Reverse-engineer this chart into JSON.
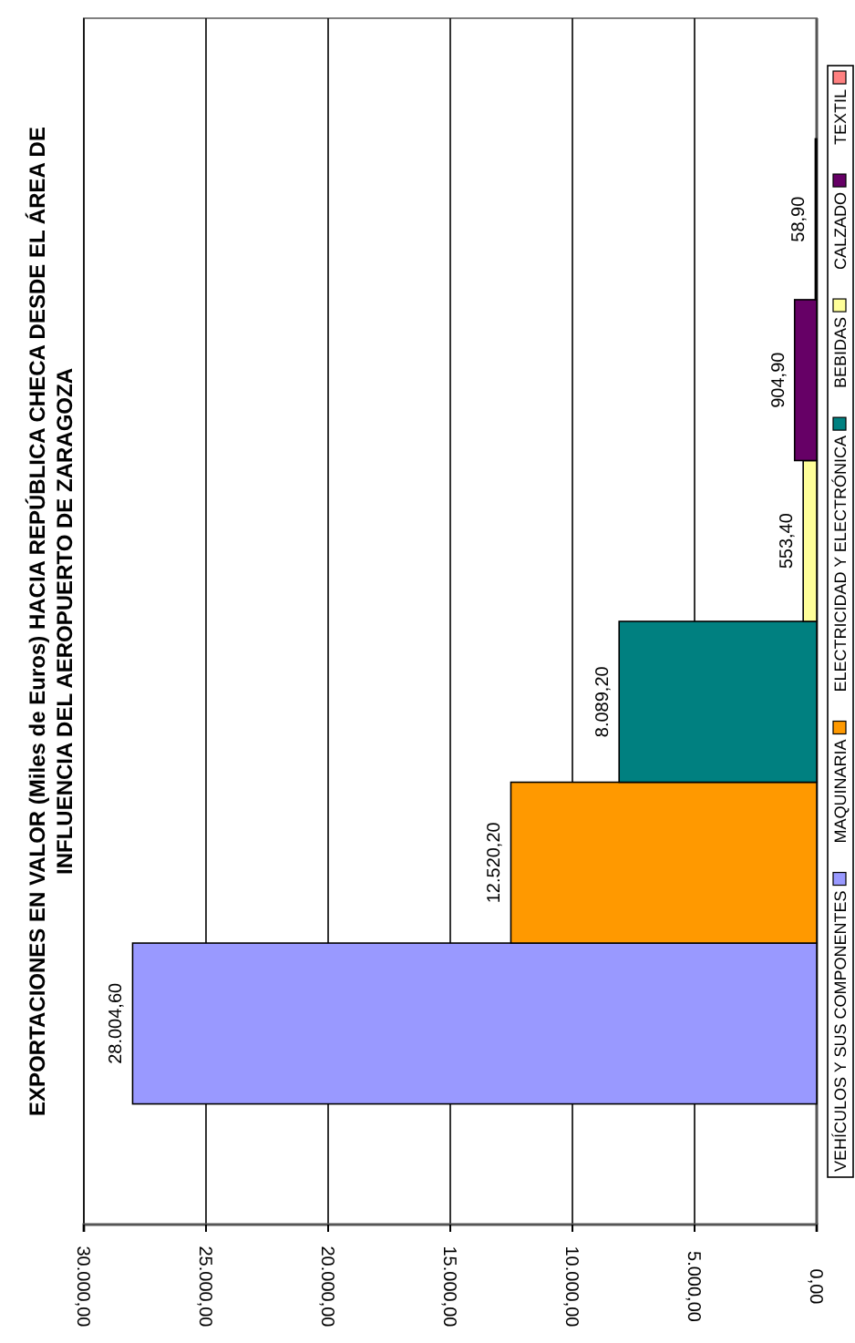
{
  "chart_data": {
    "type": "bar",
    "orientation": "horizontal",
    "title": "EXPORTACIONES EN VALOR (Miles de Euros) HACIA REPÚBLICA CHECA DESDE EL ÁREA DE INFLUENCIA DEL AEROPUERTO DE ZARAGOZA",
    "categories": [
      null
    ],
    "series": [
      {
        "name": "VEHÍCULOS Y SUS COMPONENTES",
        "color": "#9999ff",
        "values": [
          28004.6
        ],
        "value_labels": [
          "28.004,60"
        ]
      },
      {
        "name": "MAQUINARIA",
        "color": "#ff9900",
        "values": [
          12520.2
        ],
        "value_labels": [
          "12.520,20"
        ]
      },
      {
        "name": "ELECTRICIDAD Y ELECTRÓNICA",
        "color": "#008080",
        "values": [
          8089.2
        ],
        "value_labels": [
          "8.089,20"
        ]
      },
      {
        "name": "BEBIDAS",
        "color": "#ffff99",
        "values": [
          553.4
        ],
        "value_labels": [
          "553,40"
        ]
      },
      {
        "name": "CALZADO",
        "color": "#660066",
        "values": [
          904.9
        ],
        "value_labels": [
          "904,90"
        ]
      },
      {
        "name": "TEXTIL",
        "color": "#ff8080",
        "values": [
          58.9
        ],
        "value_labels": [
          "58,90"
        ]
      }
    ],
    "xlim": [
      30000,
      0
    ],
    "xticks": [
      {
        "value": 30000,
        "label": "30.000,00"
      },
      {
        "value": 25000,
        "label": "25.000,00"
      },
      {
        "value": 20000,
        "label": "20.000,00"
      },
      {
        "value": 15000,
        "label": "15.000,00"
      },
      {
        "value": 10000,
        "label": "10.000,00"
      },
      {
        "value": 5000,
        "label": "5.000,00"
      },
      {
        "value": 0,
        "label": "0,00"
      }
    ],
    "grid": "x",
    "legend": "right",
    "tick_labels": "x"
  }
}
